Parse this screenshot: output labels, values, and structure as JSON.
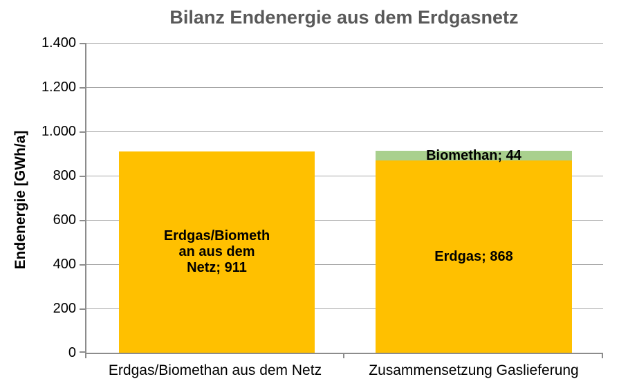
{
  "chart_data": {
    "type": "bar",
    "stacked": true,
    "title": "Bilanz Endenergie aus dem Erdgasnetz",
    "ylabel": "Endenergie [GWh/a]",
    "xlabel": "",
    "ylim": [
      0,
      1400
    ],
    "ytick_step": 200,
    "ytick_labels": [
      "1.400",
      "1.200",
      "1.000",
      "800",
      "600",
      "400",
      "200",
      "0"
    ],
    "grid": true,
    "legend": "none",
    "categories": [
      "Erdgas/Biomethan aus dem Netz",
      "Zusammensetzung Gaslieferung"
    ],
    "series": [
      {
        "name": "Erdgas/Biomethan aus dem Netz",
        "color": "#FFC000",
        "values": [
          911,
          0
        ]
      },
      {
        "name": "Erdgas",
        "color": "#FFC000",
        "values": [
          0,
          868
        ]
      },
      {
        "name": "Biomethan",
        "color": "#A9D08E",
        "values": [
          0,
          44
        ]
      }
    ],
    "data_labels": {
      "bar1_full": "Erdgas/Biomethan aus dem Netz; 911",
      "bar1_lines": [
        "Erdgas/Biometh",
        "an aus dem",
        "Netz; 911"
      ],
      "bar2_erdgas": "Erdgas; 868",
      "bar2_biomethan": "Biomethan; 44"
    },
    "colors": {
      "erdgas": "#FFC000",
      "biomethan": "#A9D08E",
      "title_text": "#595959",
      "gridline": "#A6A6A6",
      "axis": "#8C8C8C",
      "label_text": "#000000"
    }
  }
}
